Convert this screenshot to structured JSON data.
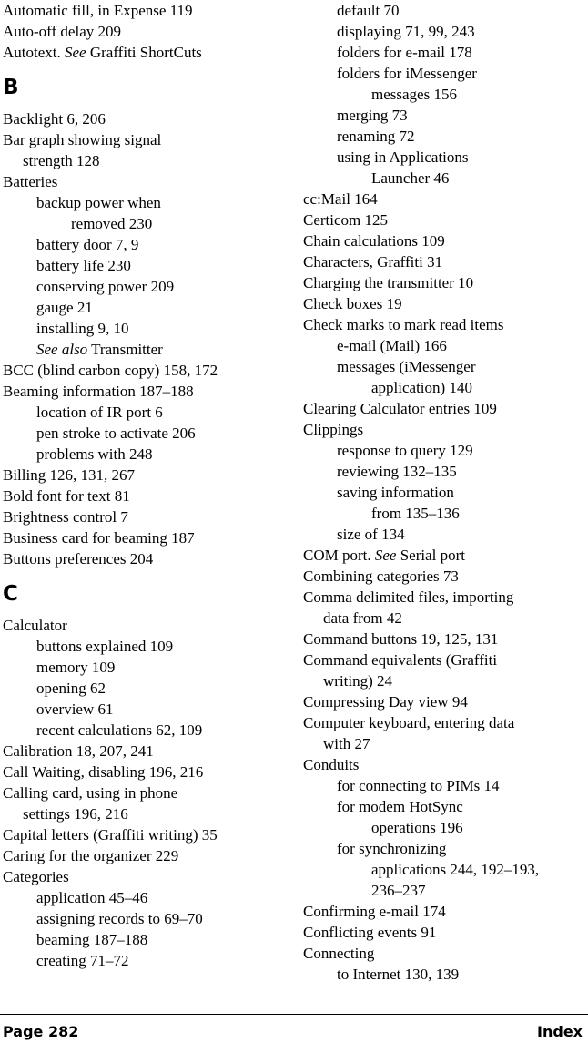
{
  "left": [
    {
      "t": "Automatic fill, in Expense 119",
      "c": "l1"
    },
    {
      "t": "Auto-off delay 209",
      "c": "l1"
    },
    {
      "html": "Autotext. <em>See</em> Graffiti ShortCuts",
      "c": "l1"
    },
    {
      "heading": "B"
    },
    {
      "t": "Backlight 6, 206",
      "c": "l1"
    },
    {
      "t": "Bar graph showing signal",
      "c": "l1"
    },
    {
      "t": "strength 128",
      "c": "l1c"
    },
    {
      "t": "Batteries",
      "c": "l1"
    },
    {
      "t": "backup power when",
      "c": "l2"
    },
    {
      "t": "removed 230",
      "c": "l2c"
    },
    {
      "t": "battery door 7, 9",
      "c": "l2"
    },
    {
      "t": "battery life 230",
      "c": "l2"
    },
    {
      "t": "conserving power 209",
      "c": "l2"
    },
    {
      "t": "gauge 21",
      "c": "l2"
    },
    {
      "t": "installing 9, 10",
      "c": "l2"
    },
    {
      "html": "<em>See also</em> Transmitter",
      "c": "l2"
    },
    {
      "t": "BCC (blind carbon copy) 158, 172",
      "c": "l1"
    },
    {
      "t": "Beaming information 187–188",
      "c": "l1"
    },
    {
      "t": "location of IR port 6",
      "c": "l2"
    },
    {
      "t": "pen stroke to activate 206",
      "c": "l2"
    },
    {
      "t": "problems with 248",
      "c": "l2"
    },
    {
      "t": "Billing 126, 131, 267",
      "c": "l1"
    },
    {
      "t": "Bold font for text 81",
      "c": "l1"
    },
    {
      "t": "Brightness control 7",
      "c": "l1"
    },
    {
      "t": "Business card for beaming 187",
      "c": "l1"
    },
    {
      "t": "Buttons preferences 204",
      "c": "l1"
    },
    {
      "heading": "C"
    },
    {
      "t": "Calculator",
      "c": "l1"
    },
    {
      "t": "buttons explained 109",
      "c": "l2"
    },
    {
      "t": "memory 109",
      "c": "l2"
    },
    {
      "t": "opening 62",
      "c": "l2"
    },
    {
      "t": "overview 61",
      "c": "l2"
    },
    {
      "t": "recent calculations 62, 109",
      "c": "l2"
    },
    {
      "t": "Calibration 18, 207, 241",
      "c": "l1"
    },
    {
      "t": "Call Waiting, disabling 196, 216",
      "c": "l1"
    },
    {
      "t": "Calling card, using in phone",
      "c": "l1"
    },
    {
      "t": "settings 196, 216",
      "c": "l1c"
    },
    {
      "t": "Capital letters (Graffiti writing) 35",
      "c": "l1"
    },
    {
      "t": "Caring for the organizer 229",
      "c": "l1"
    },
    {
      "t": "Categories",
      "c": "l1"
    },
    {
      "t": "application 45–46",
      "c": "l2"
    },
    {
      "t": "assigning records to 69–70",
      "c": "l2"
    },
    {
      "t": "beaming 187–188",
      "c": "l2"
    },
    {
      "t": "creating 71–72",
      "c": "l2"
    }
  ],
  "right": [
    {
      "t": "default 70",
      "c": "lead"
    },
    {
      "t": "displaying 71, 99, 243",
      "c": "lead"
    },
    {
      "t": "folders for e-mail 178",
      "c": "lead"
    },
    {
      "t": "folders for iMessenger",
      "c": "lead"
    },
    {
      "t": "messages 156",
      "c": "l2c"
    },
    {
      "t": "merging 73",
      "c": "lead"
    },
    {
      "t": "renaming 72",
      "c": "lead"
    },
    {
      "t": "using in Applications",
      "c": "lead"
    },
    {
      "t": "Launcher 46",
      "c": "l2c"
    },
    {
      "t": "cc:Mail 164",
      "c": "l1"
    },
    {
      "t": "Certicom 125",
      "c": "l1"
    },
    {
      "t": "Chain calculations 109",
      "c": "l1"
    },
    {
      "t": "Characters, Graffiti 31",
      "c": "l1"
    },
    {
      "t": "Charging the transmitter 10",
      "c": "l1"
    },
    {
      "t": "Check boxes 19",
      "c": "l1"
    },
    {
      "t": "Check marks to mark read items",
      "c": "l1"
    },
    {
      "t": "e-mail (Mail) 166",
      "c": "lead"
    },
    {
      "t": "messages (iMessenger",
      "c": "lead"
    },
    {
      "t": "application) 140",
      "c": "l2c"
    },
    {
      "t": "Clearing Calculator entries 109",
      "c": "l1"
    },
    {
      "t": "Clippings",
      "c": "l1"
    },
    {
      "t": "response to query 129",
      "c": "lead"
    },
    {
      "t": "reviewing 132–135",
      "c": "lead"
    },
    {
      "t": "saving information",
      "c": "lead"
    },
    {
      "t": "from 135–136",
      "c": "l2c"
    },
    {
      "t": "size of 134",
      "c": "lead"
    },
    {
      "html": "COM port. <em>See</em> Serial port",
      "c": "l1"
    },
    {
      "t": "Combining categories 73",
      "c": "l1"
    },
    {
      "t": "Comma delimited files, importing",
      "c": "l1"
    },
    {
      "t": "data from 42",
      "c": "l1c"
    },
    {
      "t": "Command buttons 19, 125, 131",
      "c": "l1"
    },
    {
      "t": "Command equivalents (Graffiti",
      "c": "l1"
    },
    {
      "t": "writing) 24",
      "c": "l1c"
    },
    {
      "t": "Compressing Day view 94",
      "c": "l1"
    },
    {
      "t": "Computer keyboard, entering data",
      "c": "l1"
    },
    {
      "t": "with 27",
      "c": "l1c"
    },
    {
      "t": "Conduits",
      "c": "l1"
    },
    {
      "t": "for connecting to PIMs 14",
      "c": "lead"
    },
    {
      "t": "for modem HotSync",
      "c": "lead"
    },
    {
      "t": "operations 196",
      "c": "l2c"
    },
    {
      "t": "for synchronizing",
      "c": "lead"
    },
    {
      "t": "applications 244, 192–193,",
      "c": "l2c"
    },
    {
      "t": "236–237",
      "c": "l2c"
    },
    {
      "t": "Confirming e-mail 174",
      "c": "l1"
    },
    {
      "t": "Conflicting events 91",
      "c": "l1"
    },
    {
      "t": "Connecting",
      "c": "l1"
    },
    {
      "t": "to Internet 130, 139",
      "c": "lead"
    }
  ],
  "footer": {
    "page": "Page 282",
    "section": "Index"
  }
}
